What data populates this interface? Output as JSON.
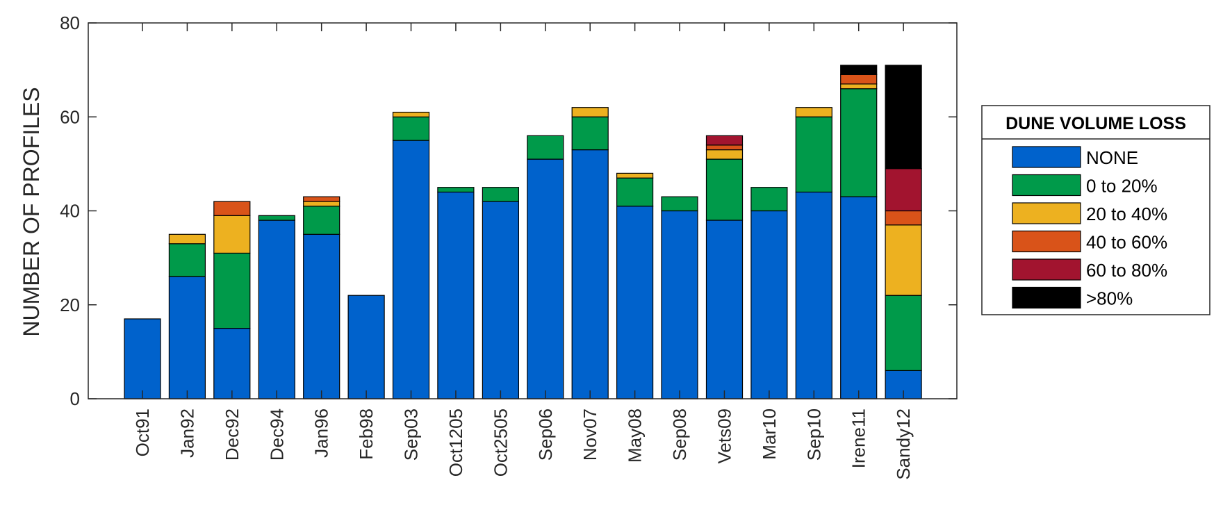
{
  "chart_data": {
    "type": "bar",
    "stacked": true,
    "title": "",
    "xlabel": "",
    "ylabel": "NUMBER OF PROFILES",
    "ylim": [
      0,
      80
    ],
    "yticks": [
      "0",
      "20",
      "40",
      "60",
      "80"
    ],
    "grid": false,
    "legend": {
      "title": "DUNE VOLUME LOSS",
      "placement": "right"
    },
    "categories": [
      "Oct91",
      "Jan92",
      "Dec92",
      "Dec94",
      "Jan96",
      "Feb98",
      "Sep03",
      "Oct1205",
      "Oct2505",
      "Sep06",
      "Nov07",
      "May08",
      "Sep08",
      "Vets09",
      "Mar10",
      "Sep10",
      "Irene11",
      "Sandy12"
    ],
    "series": [
      {
        "name": "NONE",
        "color": "#0062cc",
        "values": [
          17,
          26,
          15,
          38,
          35,
          22,
          55,
          44,
          42,
          51,
          53,
          41,
          40,
          38,
          40,
          44,
          43,
          6
        ]
      },
      {
        "name": "0 to 20%",
        "color": "#009a4a",
        "values": [
          0,
          7,
          16,
          1,
          6,
          0,
          5,
          1,
          3,
          5,
          7,
          6,
          3,
          13,
          5,
          16,
          23,
          16
        ]
      },
      {
        "name": "20 to 40%",
        "color": "#edb120",
        "values": [
          0,
          2,
          8,
          0,
          1,
          0,
          1,
          0,
          0,
          0,
          2,
          1,
          0,
          2,
          0,
          2,
          1,
          15
        ]
      },
      {
        "name": "40 to 60%",
        "color": "#d95319",
        "values": [
          0,
          0,
          3,
          0,
          1,
          0,
          0,
          0,
          0,
          0,
          0,
          0,
          0,
          1,
          0,
          0,
          2,
          3
        ]
      },
      {
        "name": "60 to 80%",
        "color": "#a2142f",
        "values": [
          0,
          0,
          0,
          0,
          0,
          0,
          0,
          0,
          0,
          0,
          0,
          0,
          0,
          2,
          0,
          0,
          0,
          9
        ]
      },
      {
        "name": ">80%",
        "color": "#000000",
        "values": [
          0,
          0,
          0,
          0,
          0,
          0,
          0,
          0,
          0,
          0,
          0,
          0,
          0,
          0,
          0,
          0,
          2,
          22
        ]
      }
    ]
  }
}
